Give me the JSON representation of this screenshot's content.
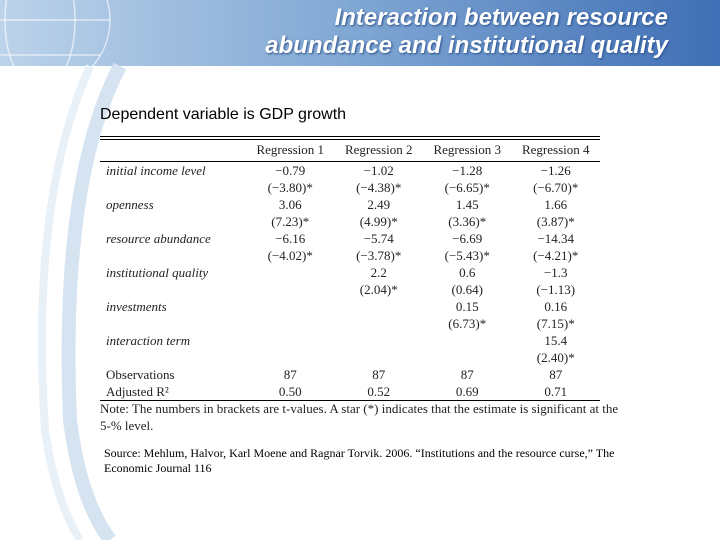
{
  "header": {
    "title_line1": "Interaction between resource",
    "title_line2": "abundance and institutional quality"
  },
  "subtitle": "Dependent variable is GDP growth",
  "table": {
    "columns": [
      "Regression 1",
      "Regression 2",
      "Regression 3",
      "Regression 4"
    ],
    "rows": [
      [
        "initial income level",
        "−0.79",
        "−1.02",
        "−1.28",
        "−1.26"
      ],
      [
        null,
        "(−3.80)*",
        "(−4.38)*",
        "(−6.65)*",
        "(−6.70)*"
      ],
      [
        "openness",
        "3.06",
        "2.49",
        "1.45",
        "1.66"
      ],
      [
        null,
        "(7.23)*",
        "(4.99)*",
        "(3.36)*",
        "(3.87)*"
      ],
      [
        "resource abundance",
        "−6.16",
        "−5.74",
        "−6.69",
        "−14.34"
      ],
      [
        null,
        "(−4.02)*",
        "(−3.78)*",
        "(−5.43)*",
        "(−4.21)*"
      ],
      [
        "institutional quality",
        null,
        "2.2",
        "0.6",
        "−1.3"
      ],
      [
        null,
        null,
        "(2.04)*",
        "(0.64)",
        "(−1.13)"
      ],
      [
        "investments",
        null,
        null,
        "0.15",
        "0.16"
      ],
      [
        null,
        null,
        null,
        "(6.73)*",
        "(7.15)*"
      ],
      [
        "interaction term",
        null,
        null,
        null,
        "15.4"
      ],
      [
        null,
        null,
        null,
        null,
        "(2.40)*"
      ],
      [
        "Observations",
        "87",
        "87",
        "87",
        "87"
      ],
      [
        "Adjusted R²",
        "0.50",
        "0.52",
        "0.69",
        "0.71"
      ]
    ]
  },
  "note": "Note: The numbers in brackets are t-values. A star (*) indicates that the estimate is significant at the 5-% level.",
  "source": "Source: Mehlum, Halvor, Karl Moene and Ragnar Torvik. 2006. “Institutions and the resource curse,” The Economic Journal 116"
}
